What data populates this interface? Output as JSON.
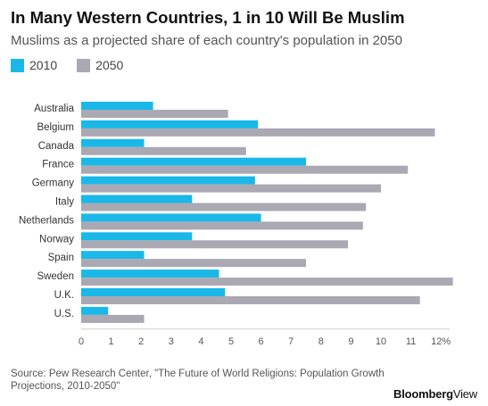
{
  "title": "In Many Western Countries, 1 in 10 Will Be Muslim",
  "subtitle": "Muslims as a projected share of each country's population in 2050",
  "source": "Source: Pew Research Center, \"The Future of World Religions: Population Growth Projections, 2010-2050\"",
  "brand": {
    "name": "Bloomberg",
    "section": "View"
  },
  "colors": {
    "series_2010": "#1ab8e8",
    "series_2050": "#aaa8b2",
    "axis": "#555555",
    "grid": "#e6e6e6"
  },
  "chart_data": {
    "type": "bar",
    "orientation": "horizontal",
    "title": "In Many Western Countries, 1 in 10 Will Be Muslim",
    "subtitle": "Muslims as a projected share of each country's population in 2050",
    "xlabel": "",
    "ylabel": "",
    "xlim": [
      0,
      12.3
    ],
    "xticks": [
      "0",
      "1",
      "2",
      "3",
      "4",
      "5",
      "6",
      "7",
      "8",
      "9",
      "10",
      "11",
      "12%"
    ],
    "grid": false,
    "legend_position": "top-left",
    "categories": [
      "Australia",
      "Belgium",
      "Canada",
      "France",
      "Germany",
      "Italy",
      "Netherlands",
      "Norway",
      "Spain",
      "Sweden",
      "U.K.",
      "U.S."
    ],
    "series": [
      {
        "name": "2010",
        "values": [
          2.4,
          5.9,
          2.1,
          7.5,
          5.8,
          3.7,
          6.0,
          3.7,
          2.1,
          4.6,
          4.8,
          0.9
        ]
      },
      {
        "name": "2050",
        "values": [
          4.9,
          11.8,
          5.5,
          10.9,
          10.0,
          9.5,
          9.4,
          8.9,
          7.5,
          12.4,
          11.3,
          2.1
        ]
      }
    ]
  }
}
